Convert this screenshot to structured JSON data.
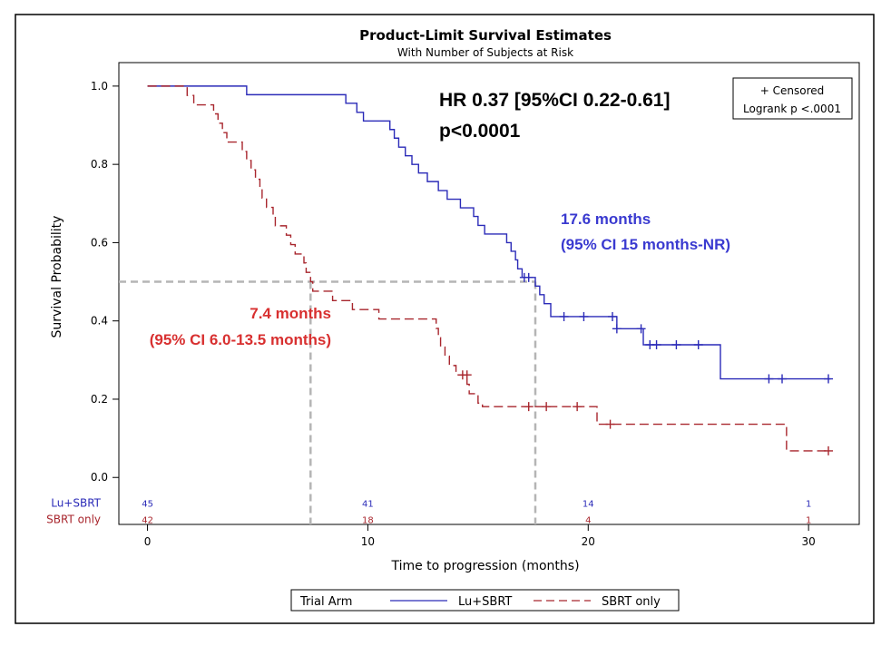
{
  "chart_data": {
    "type": "line",
    "title": "Product-Limit Survival Estimates",
    "subtitle": "With Number of Subjects at Risk",
    "xlabel": "Time to progression (months)",
    "ylabel": "Survival Probability",
    "xlim": [
      -1.3,
      32.3
    ],
    "ylim": [
      -0.12,
      1.06
    ],
    "x_ticks": [
      0,
      10,
      20,
      30
    ],
    "y_ticks": [
      0.0,
      0.2,
      0.4,
      0.6,
      0.8,
      1.0
    ],
    "x_tick_labels": [
      "0",
      "10",
      "20",
      "30"
    ],
    "y_tick_labels": [
      "0.0",
      "0.2",
      "0.4",
      "0.6",
      "0.8",
      "1.0"
    ],
    "grid": false,
    "series": [
      {
        "name": "Lu+SBRT",
        "color": "#2b2bb8",
        "dash": "solid",
        "steps": [
          [
            0,
            1.0
          ],
          [
            4.5,
            0.978
          ],
          [
            9.0,
            0.956
          ],
          [
            9.5,
            0.933
          ],
          [
            9.8,
            0.911
          ],
          [
            11.0,
            0.889
          ],
          [
            11.2,
            0.867
          ],
          [
            11.4,
            0.844
          ],
          [
            11.7,
            0.822
          ],
          [
            12.0,
            0.8
          ],
          [
            12.3,
            0.778
          ],
          [
            12.7,
            0.756
          ],
          [
            13.2,
            0.733
          ],
          [
            13.6,
            0.711
          ],
          [
            14.2,
            0.689
          ],
          [
            14.8,
            0.667
          ],
          [
            15.0,
            0.644
          ],
          [
            15.3,
            0.622
          ],
          [
            16.3,
            0.6
          ],
          [
            16.5,
            0.578
          ],
          [
            16.7,
            0.556
          ],
          [
            16.8,
            0.533
          ],
          [
            17.0,
            0.511
          ],
          [
            17.6,
            0.489
          ],
          [
            17.8,
            0.467
          ],
          [
            18.0,
            0.444
          ],
          [
            18.3,
            0.411
          ],
          [
            21.3,
            0.38
          ],
          [
            22.5,
            0.339
          ],
          [
            26.0,
            0.252
          ],
          [
            31.0,
            0.252
          ]
        ],
        "censored": [
          [
            17.1,
            0.511
          ],
          [
            17.3,
            0.511
          ],
          [
            18.9,
            0.411
          ],
          [
            19.8,
            0.411
          ],
          [
            21.1,
            0.411
          ],
          [
            21.3,
            0.38
          ],
          [
            22.4,
            0.38
          ],
          [
            22.8,
            0.339
          ],
          [
            23.1,
            0.339
          ],
          [
            24.0,
            0.339
          ],
          [
            25.0,
            0.339
          ],
          [
            28.2,
            0.252
          ],
          [
            28.8,
            0.252
          ],
          [
            30.9,
            0.252
          ]
        ]
      },
      {
        "name": "SBRT only",
        "color": "#a8262d",
        "dash": "dashed",
        "steps": [
          [
            0,
            1.0
          ],
          [
            1.8,
            0.976
          ],
          [
            2.1,
            0.952
          ],
          [
            3.0,
            0.929
          ],
          [
            3.2,
            0.905
          ],
          [
            3.4,
            0.881
          ],
          [
            3.6,
            0.857
          ],
          [
            4.3,
            0.833
          ],
          [
            4.5,
            0.81
          ],
          [
            4.7,
            0.786
          ],
          [
            4.9,
            0.762
          ],
          [
            5.1,
            0.738
          ],
          [
            5.2,
            0.714
          ],
          [
            5.4,
            0.69
          ],
          [
            5.7,
            0.667
          ],
          [
            5.8,
            0.643
          ],
          [
            6.3,
            0.619
          ],
          [
            6.5,
            0.595
          ],
          [
            6.7,
            0.571
          ],
          [
            7.1,
            0.548
          ],
          [
            7.2,
            0.524
          ],
          [
            7.4,
            0.5
          ],
          [
            7.5,
            0.476
          ],
          [
            8.4,
            0.452
          ],
          [
            9.3,
            0.429
          ],
          [
            10.5,
            0.405
          ],
          [
            13.1,
            0.381
          ],
          [
            13.2,
            0.357
          ],
          [
            13.3,
            0.333
          ],
          [
            13.5,
            0.31
          ],
          [
            13.7,
            0.286
          ],
          [
            14.0,
            0.262
          ],
          [
            14.5,
            0.238
          ],
          [
            14.6,
            0.214
          ],
          [
            15.0,
            0.19
          ],
          [
            15.2,
            0.181
          ],
          [
            20.4,
            0.136
          ],
          [
            29.0,
            0.068
          ],
          [
            31.0,
            0.068
          ]
        ],
        "censored": [
          [
            14.3,
            0.262
          ],
          [
            14.5,
            0.262
          ],
          [
            17.3,
            0.181
          ],
          [
            18.1,
            0.181
          ],
          [
            19.5,
            0.181
          ],
          [
            21.0,
            0.136
          ],
          [
            30.9,
            0.068
          ]
        ]
      }
    ],
    "median_reference_lines": [
      {
        "x": 7.4,
        "y": 0.5
      },
      {
        "x": 17.6,
        "y": 0.5
      }
    ],
    "risk_table": {
      "times": [
        0,
        10,
        20,
        30
      ],
      "rows": [
        {
          "label": "Lu+SBRT",
          "values": [
            "45",
            "41",
            "14",
            "1"
          ],
          "color": "#2b2bb8"
        },
        {
          "label": "SBRT only",
          "values": [
            "42",
            "18",
            "4",
            "1"
          ],
          "color": "#a8262d"
        }
      ]
    },
    "annotations": {
      "hr_line1": "HR 0.37 [95%CI 0.22-0.61]",
      "hr_line2": "p<0.0001",
      "lu_median_line1": "17.6 months",
      "lu_median_line2": "(95% CI 15 months-NR)",
      "sbrt_median_line1": "7.4 months",
      "sbrt_median_line2": "(95% CI 6.0-13.5 months)"
    },
    "inset_legend": {
      "line1": "+ Censored",
      "line2": "Logrank p <.0001"
    },
    "legend": {
      "title": "Trial Arm",
      "position": "bottom-center",
      "items": [
        "Lu+SBRT",
        "SBRT only"
      ]
    }
  }
}
